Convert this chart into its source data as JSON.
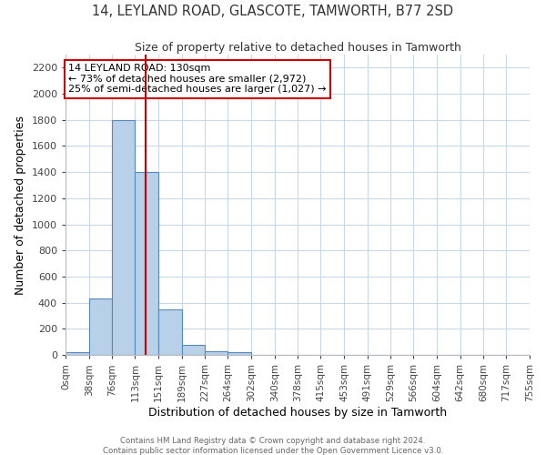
{
  "title": "14, LEYLAND ROAD, GLASCOTE, TAMWORTH, B77 2SD",
  "subtitle": "Size of property relative to detached houses in Tamworth",
  "xlabel": "Distribution of detached houses by size in Tamworth",
  "ylabel": "Number of detached properties",
  "bin_edges": [
    0,
    38,
    76,
    113,
    151,
    189,
    227,
    264,
    302,
    340,
    378,
    415,
    453,
    491,
    529,
    566,
    604,
    642,
    680,
    717,
    755
  ],
  "bar_heights": [
    20,
    430,
    1800,
    1400,
    350,
    75,
    25,
    20,
    0,
    0,
    0,
    0,
    0,
    0,
    0,
    0,
    0,
    0,
    0,
    0
  ],
  "bar_color": "#b8d0e8",
  "bar_edge_color": "#5588bb",
  "ylim": [
    0,
    2300
  ],
  "yticks": [
    0,
    200,
    400,
    600,
    800,
    1000,
    1200,
    1400,
    1600,
    1800,
    2000,
    2200
  ],
  "property_size": 130,
  "red_line_color": "#cc0000",
  "annotation_title": "14 LEYLAND ROAD: 130sqm",
  "annotation_line1": "← 73% of detached houses are smaller (2,972)",
  "annotation_line2": "25% of semi-detached houses are larger (1,027) →",
  "annotation_box_color": "#ffffff",
  "annotation_box_edge_color": "#cc0000",
  "footer_line1": "Contains HM Land Registry data © Crown copyright and database right 2024.",
  "footer_line2": "Contains public sector information licensed under the Open Government Licence v3.0.",
  "background_color": "#ffffff",
  "grid_color": "#c8d8e8"
}
